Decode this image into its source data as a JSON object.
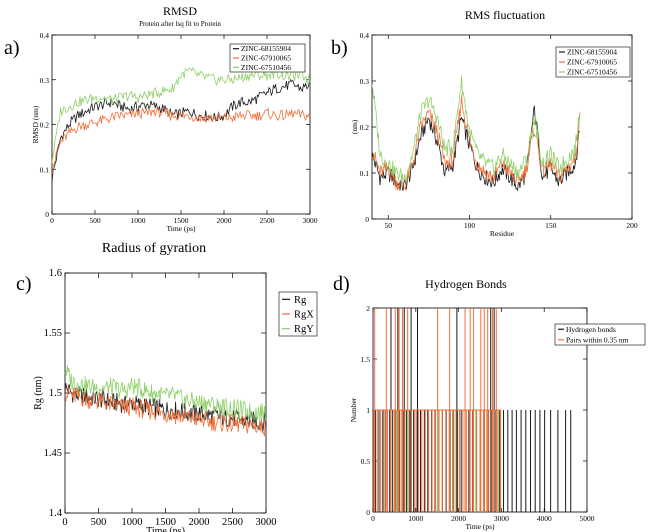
{
  "panel_letters": {
    "a": "a)",
    "b": "b)",
    "c": "c)",
    "d": "d)"
  },
  "colors": {
    "black": "#1a1a1a",
    "orange": "#f0703a",
    "green": "#8fd06a"
  },
  "chart_data": [
    {
      "id": "a",
      "type": "line",
      "title": "RMSD",
      "subtitle": "Protein after lsq fit to Protein",
      "xlabel": "Time (ps)",
      "ylabel": "RMSD (nm)",
      "xlim": [
        0,
        3000
      ],
      "ylim": [
        0,
        0.4
      ],
      "xticks": [
        0,
        500,
        1000,
        1500,
        2000,
        2500,
        3000
      ],
      "yticks": [
        0,
        0.1,
        0.2,
        0.3,
        0.4
      ],
      "legend_position": "top-right",
      "x": [
        0,
        100,
        200,
        300,
        400,
        500,
        600,
        700,
        800,
        900,
        1000,
        1100,
        1200,
        1300,
        1400,
        1500,
        1600,
        1700,
        1800,
        1900,
        2000,
        2100,
        2200,
        2300,
        2400,
        2500,
        2600,
        2700,
        2800,
        2900,
        3000
      ],
      "series": [
        {
          "name": "ZINC-68155904",
          "color": "#1a1a1a",
          "values": [
            0.08,
            0.17,
            0.2,
            0.22,
            0.23,
            0.24,
            0.245,
            0.25,
            0.24,
            0.235,
            0.24,
            0.245,
            0.24,
            0.235,
            0.22,
            0.225,
            0.23,
            0.22,
            0.22,
            0.215,
            0.22,
            0.24,
            0.25,
            0.25,
            0.26,
            0.27,
            0.28,
            0.285,
            0.29,
            0.28,
            0.29
          ]
        },
        {
          "name": "ZINC-67910065",
          "color": "#f0703a",
          "values": [
            0.1,
            0.16,
            0.18,
            0.195,
            0.2,
            0.205,
            0.21,
            0.215,
            0.22,
            0.22,
            0.225,
            0.225,
            0.23,
            0.225,
            0.22,
            0.22,
            0.22,
            0.215,
            0.215,
            0.215,
            0.215,
            0.215,
            0.22,
            0.22,
            0.22,
            0.225,
            0.22,
            0.22,
            0.225,
            0.22,
            0.22
          ]
        },
        {
          "name": "ZINC-67510456",
          "color": "#8fd06a",
          "values": [
            0.12,
            0.23,
            0.24,
            0.25,
            0.255,
            0.26,
            0.26,
            0.255,
            0.26,
            0.265,
            0.26,
            0.265,
            0.27,
            0.275,
            0.28,
            0.31,
            0.32,
            0.31,
            0.305,
            0.3,
            0.3,
            0.3,
            0.305,
            0.31,
            0.31,
            0.31,
            0.315,
            0.31,
            0.31,
            0.31,
            0.3
          ]
        }
      ]
    },
    {
      "id": "b",
      "type": "line",
      "title": "RMS fluctuation",
      "xlabel": "Residue",
      "ylabel": "(nm)",
      "xlim": [
        40,
        200
      ],
      "ylim": [
        0,
        0.4
      ],
      "xticks": [
        50,
        100,
        150,
        200
      ],
      "yticks": [
        0,
        0.1,
        0.2,
        0.3,
        0.4
      ],
      "legend_position": "top-right",
      "x": [
        40,
        45,
        50,
        55,
        60,
        65,
        70,
        75,
        80,
        85,
        90,
        95,
        100,
        105,
        110,
        115,
        120,
        125,
        130,
        135,
        140,
        145,
        150,
        155,
        160,
        165,
        168
      ],
      "series": [
        {
          "name": "ZINC-68155904",
          "color": "#1a1a1a",
          "values": [
            0.14,
            0.09,
            0.1,
            0.08,
            0.07,
            0.11,
            0.18,
            0.22,
            0.17,
            0.1,
            0.12,
            0.22,
            0.16,
            0.11,
            0.09,
            0.08,
            0.11,
            0.09,
            0.07,
            0.1,
            0.24,
            0.09,
            0.11,
            0.08,
            0.1,
            0.12,
            0.2
          ]
        },
        {
          "name": "ZINC-67910065",
          "color": "#f0703a",
          "values": [
            0.15,
            0.1,
            0.11,
            0.08,
            0.07,
            0.12,
            0.2,
            0.23,
            0.19,
            0.12,
            0.13,
            0.26,
            0.17,
            0.12,
            0.1,
            0.09,
            0.12,
            0.1,
            0.08,
            0.11,
            0.2,
            0.1,
            0.12,
            0.09,
            0.11,
            0.13,
            0.22
          ]
        },
        {
          "name": "ZINC-67510456",
          "color": "#8fd06a",
          "values": [
            0.3,
            0.14,
            0.12,
            0.1,
            0.09,
            0.14,
            0.23,
            0.26,
            0.22,
            0.15,
            0.16,
            0.3,
            0.19,
            0.14,
            0.12,
            0.11,
            0.14,
            0.12,
            0.1,
            0.13,
            0.22,
            0.12,
            0.14,
            0.11,
            0.13,
            0.15,
            0.24
          ]
        }
      ]
    },
    {
      "id": "c",
      "type": "line",
      "title": "Radius of gyration",
      "xlabel": "Time (ps)",
      "ylabel": "Rg (nm)",
      "xlim": [
        0,
        3000
      ],
      "ylim": [
        1.4,
        1.6
      ],
      "xticks": [
        0,
        500,
        1000,
        1500,
        2000,
        2500,
        3000
      ],
      "yticks": [
        1.4,
        1.45,
        1.5,
        1.55,
        1.6
      ],
      "legend_position": "top-right",
      "x": [
        0,
        100,
        200,
        300,
        400,
        500,
        600,
        700,
        800,
        900,
        1000,
        1100,
        1200,
        1300,
        1400,
        1500,
        1600,
        1700,
        1800,
        1900,
        2000,
        2100,
        2200,
        2300,
        2400,
        2500,
        2600,
        2700,
        2800,
        2900,
        3000
      ],
      "series": [
        {
          "name": "Rg",
          "color": "#1a1a1a",
          "values": [
            1.505,
            1.5,
            1.498,
            1.497,
            1.496,
            1.495,
            1.494,
            1.492,
            1.492,
            1.49,
            1.492,
            1.49,
            1.489,
            1.488,
            1.487,
            1.486,
            1.486,
            1.485,
            1.484,
            1.483,
            1.483,
            1.482,
            1.481,
            1.48,
            1.479,
            1.479,
            1.478,
            1.477,
            1.477,
            1.476,
            1.476
          ]
        },
        {
          "name": "RgX",
          "color": "#f0703a",
          "values": [
            1.5,
            1.498,
            1.497,
            1.495,
            1.494,
            1.493,
            1.492,
            1.49,
            1.489,
            1.488,
            1.489,
            1.487,
            1.486,
            1.485,
            1.484,
            1.483,
            1.482,
            1.481,
            1.48,
            1.479,
            1.478,
            1.477,
            1.476,
            1.475,
            1.475,
            1.474,
            1.474,
            1.473,
            1.473,
            1.472,
            1.472
          ]
        },
        {
          "name": "RgY",
          "color": "#8fd06a",
          "values": [
            1.52,
            1.51,
            1.508,
            1.506,
            1.505,
            1.505,
            1.504,
            1.505,
            1.503,
            1.502,
            1.506,
            1.504,
            1.502,
            1.5,
            1.499,
            1.497,
            1.498,
            1.496,
            1.494,
            1.493,
            1.492,
            1.492,
            1.49,
            1.489,
            1.488,
            1.487,
            1.486,
            1.485,
            1.485,
            1.484,
            1.484
          ]
        }
      ]
    },
    {
      "id": "d",
      "type": "line",
      "title": "Hydrogen Bonds",
      "xlabel": "Time (ps)",
      "ylabel": "Number",
      "xlim": [
        0,
        5000
      ],
      "ylim": [
        0,
        2
      ],
      "xticks": [
        0,
        1000,
        2000,
        3000,
        4000,
        5000
      ],
      "yticks": [
        0,
        0.5,
        1,
        1.5,
        2
      ],
      "legend_position": "top-right",
      "series": [
        {
          "name": "Hydrogen bonds",
          "color": "#1a1a1a",
          "spikes1": [
            60,
            140,
            230,
            300,
            390,
            460,
            540,
            620,
            700,
            780,
            860,
            950,
            1030,
            1110,
            1200,
            1280,
            1370,
            1450,
            1540,
            1620,
            1710,
            1800,
            1880,
            1970,
            2060,
            2150,
            2240,
            2330,
            2420,
            2510,
            2600,
            2690,
            2780,
            2870,
            2960,
            3050,
            3150,
            3250,
            3350,
            3460,
            3570,
            3680,
            3790,
            3900,
            4010,
            4150,
            4320,
            4500,
            4620
          ],
          "spikes2": [
            420,
            580,
            730,
            890,
            1040,
            1960,
            2750,
            2830
          ]
        },
        {
          "name": "Pairs within 0.35 nm",
          "color": "#f0703a",
          "spikes1": [
            20,
            100,
            180,
            260,
            340,
            420,
            500,
            580,
            660,
            740,
            820,
            900,
            980,
            1060,
            1140,
            1220,
            1300,
            1380,
            1460,
            1540,
            1620,
            1700,
            1780,
            1860,
            1940,
            2020,
            2100,
            2180,
            2260,
            2340,
            2420,
            2500,
            2580,
            2660,
            2740,
            2820,
            2900,
            2980
          ],
          "spikes2": [
            40,
            310,
            520,
            610,
            690,
            810,
            1510,
            1790,
            2150,
            2270,
            2350,
            2520,
            2600,
            2680,
            2790,
            2880
          ]
        },
        {
          "name": "",
          "color": "#8fd06a",
          "spikes1": [
            550,
            810,
            1500,
            1890,
            2400,
            2930
          ],
          "spikes2": []
        }
      ]
    }
  ]
}
